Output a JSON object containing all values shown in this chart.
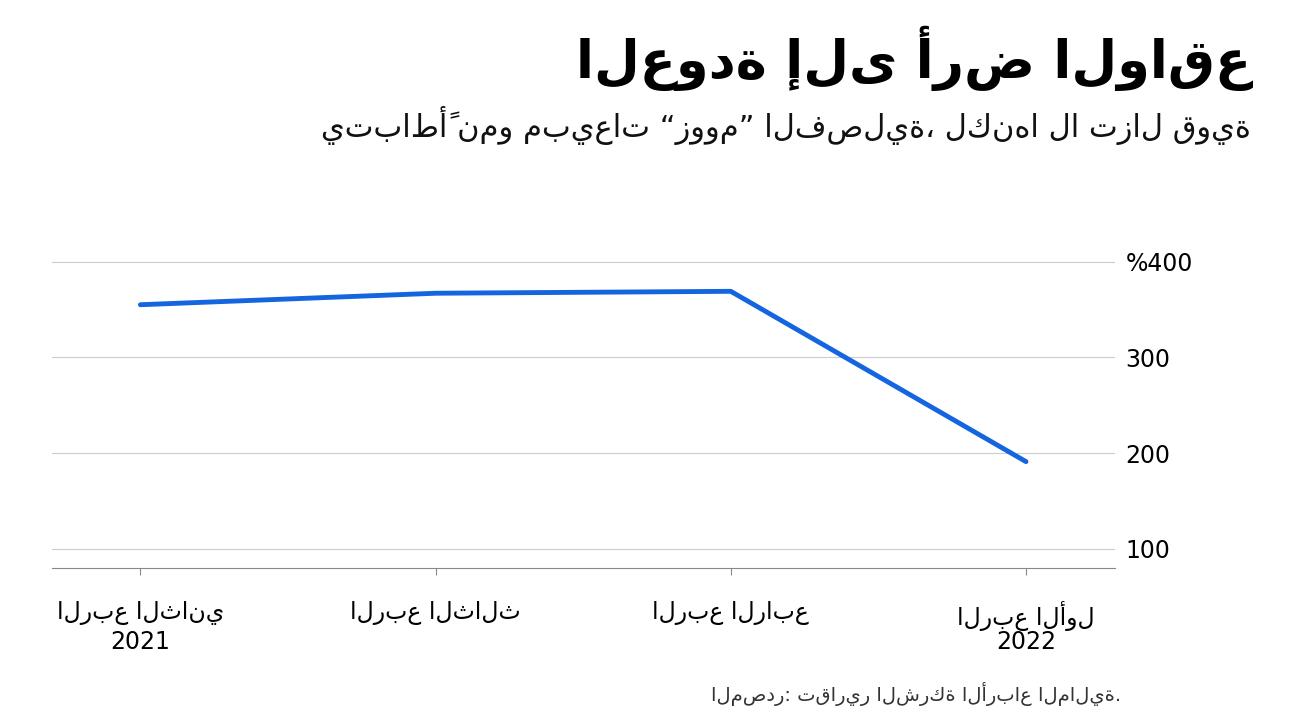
{
  "title": "العودة إلى أرض الواقع",
  "subtitle": "يتباطأً نمو مبيعات “زووم” الفصلية، لكنها لا تزال قوية",
  "source_text": "المصدر: تقارير الشركة الأرباع المالية.",
  "x_label_lines": [
    [
      "الربع الثاني",
      "2021"
    ],
    [
      "الربع الثالث",
      ""
    ],
    [
      "الربع الرابع",
      ""
    ],
    [
      "الربع الأول",
      "2022"
    ]
  ],
  "y_values": [
    355,
    367,
    369,
    191
  ],
  "x_positions": [
    0,
    1,
    2,
    3
  ],
  "line_color": "#1565e0",
  "line_width": 3.5,
  "ylim": [
    80,
    430
  ],
  "yticks": [
    100,
    200,
    300,
    400
  ],
  "ytick_labels": [
    "100",
    "200",
    "300",
    "%400"
  ],
  "background_color": "#ffffff",
  "grid_color": "#cccccc",
  "title_fontsize": 38,
  "subtitle_fontsize": 22,
  "tick_fontsize": 17,
  "source_fontsize": 14
}
